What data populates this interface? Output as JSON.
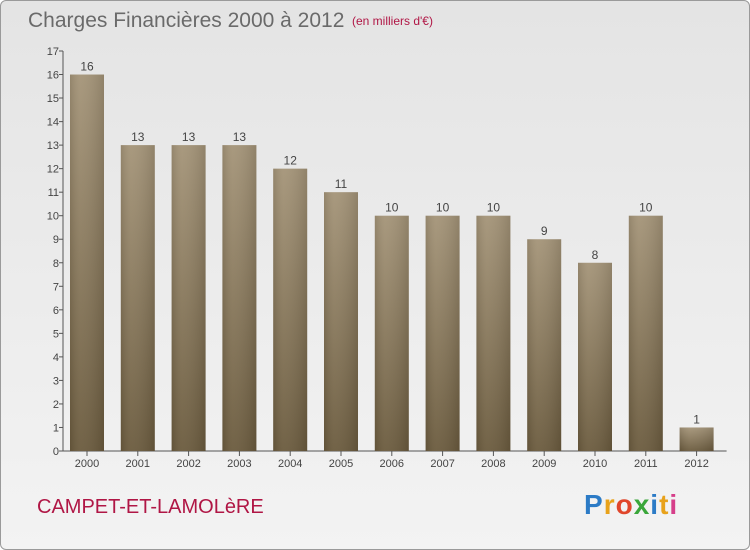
{
  "header": {
    "title": "Charges Financières 2000 à 2012",
    "subtitle": "(en milliers d'€)"
  },
  "footer": {
    "commune": "CAMPET-ET-LAMOLèRE",
    "logo": "Proxiti"
  },
  "colors": {
    "bar_top": "#a49478",
    "bar_bottom": "#6b5b3e",
    "accent": "#b01645"
  },
  "chart_data": {
    "type": "bar",
    "title": "Charges Financières 2000 à 2012",
    "subtitle": "(en milliers d'€)",
    "categories": [
      "2000",
      "2001",
      "2002",
      "2003",
      "2004",
      "2005",
      "2006",
      "2007",
      "2008",
      "2009",
      "2010",
      "2011",
      "2012"
    ],
    "values": [
      16,
      13,
      13,
      13,
      12,
      11,
      10,
      10,
      10,
      9,
      8,
      10,
      1
    ],
    "ylim": [
      0,
      17
    ],
    "yticks": [
      0,
      1,
      2,
      3,
      4,
      5,
      6,
      7,
      8,
      9,
      10,
      11,
      12,
      13,
      14,
      15,
      16,
      17
    ],
    "grid": false,
    "data_labels": true
  }
}
